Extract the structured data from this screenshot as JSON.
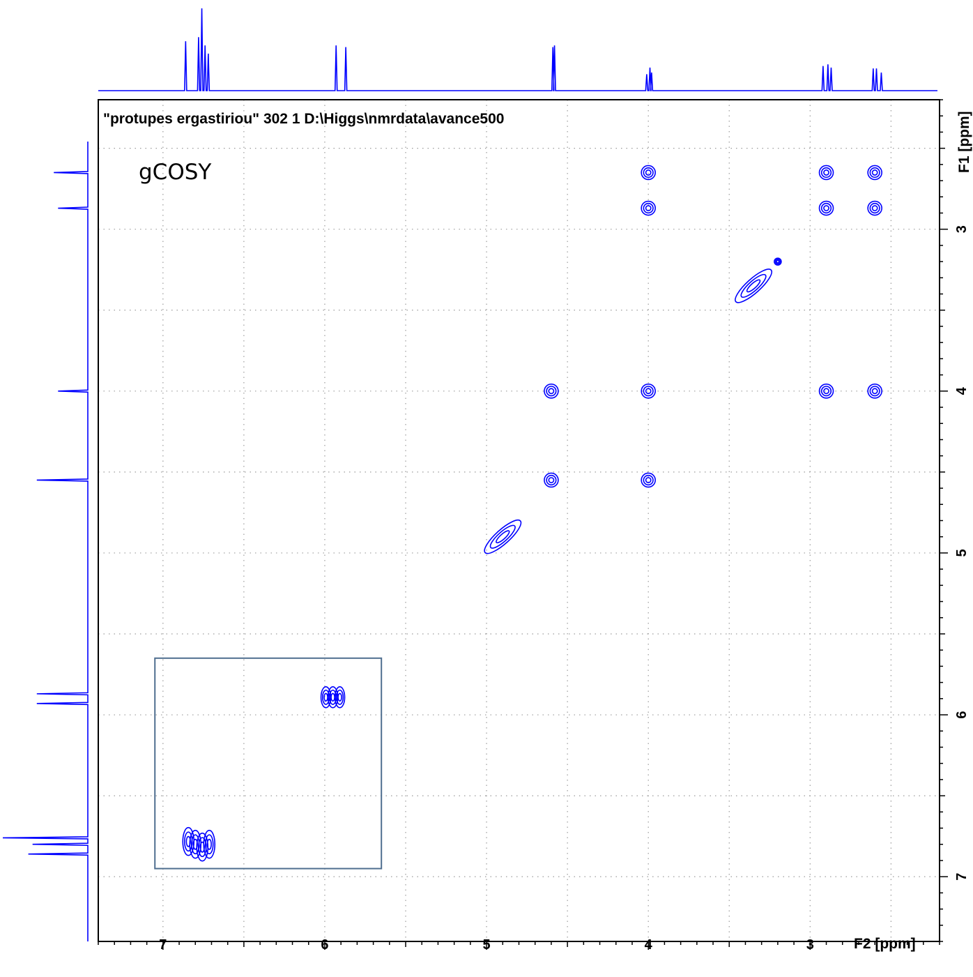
{
  "chart_data": {
    "type": "contour",
    "header": "\"protupes ergastiriou\"  302  1  D:\\Higgs\\nmrdata\\avance500",
    "experiment_label": "gCOSY",
    "xlabel": "F2 [ppm]",
    "ylabel": "F1 [ppm]",
    "xlim": [
      7.4,
      2.2
    ],
    "ylim": [
      2.2,
      7.4
    ],
    "x_ticks": [
      7,
      6,
      5,
      4,
      3
    ],
    "y_ticks": [
      3,
      4,
      5,
      6,
      7
    ],
    "grid": true,
    "x_minor_step": 0.1,
    "y_minor_step": 0.1,
    "grid_step": 0.5,
    "color": "#0000ff",
    "box_color": "#4f6e8f",
    "diagonal_peaks": [
      {
        "x": 6.8,
        "y": 6.8
      },
      {
        "x": 5.95,
        "y": 5.9
      },
      {
        "x": 4.9,
        "y": 4.9
      },
      {
        "x": 3.35,
        "y": 3.35
      }
    ],
    "cross_peaks": [
      {
        "x": 4.0,
        "y": 2.65
      },
      {
        "x": 2.9,
        "y": 2.65
      },
      {
        "x": 2.6,
        "y": 2.65
      },
      {
        "x": 4.0,
        "y": 2.87
      },
      {
        "x": 2.9,
        "y": 2.87
      },
      {
        "x": 2.6,
        "y": 2.87
      },
      {
        "x": 4.6,
        "y": 4.0
      },
      {
        "x": 4.0,
        "y": 4.0
      },
      {
        "x": 2.9,
        "y": 4.0
      },
      {
        "x": 2.6,
        "y": 4.0
      },
      {
        "x": 4.6,
        "y": 4.55
      },
      {
        "x": 4.0,
        "y": 4.55
      },
      {
        "x": 3.2,
        "y": 3.2
      }
    ],
    "box_region": {
      "x1": 7.05,
      "x2": 5.65,
      "y1": 5.65,
      "y2": 6.95
    },
    "projection_f2_peaks": [
      {
        "ppm": 6.86,
        "height": 0.6
      },
      {
        "ppm": 6.78,
        "height": 0.65
      },
      {
        "ppm": 6.76,
        "height": 1.0
      },
      {
        "ppm": 6.74,
        "height": 0.55
      },
      {
        "ppm": 6.72,
        "height": 0.45
      },
      {
        "ppm": 5.93,
        "height": 0.55
      },
      {
        "ppm": 5.87,
        "height": 0.53
      },
      {
        "ppm": 4.59,
        "height": 0.53
      },
      {
        "ppm": 4.58,
        "height": 0.55
      },
      {
        "ppm": 4.01,
        "height": 0.2
      },
      {
        "ppm": 3.99,
        "height": 0.28
      },
      {
        "ppm": 3.98,
        "height": 0.22
      },
      {
        "ppm": 2.92,
        "height": 0.3
      },
      {
        "ppm": 2.89,
        "height": 0.32
      },
      {
        "ppm": 2.87,
        "height": 0.28
      },
      {
        "ppm": 2.61,
        "height": 0.27
      },
      {
        "ppm": 2.59,
        "height": 0.27
      },
      {
        "ppm": 2.56,
        "height": 0.22
      }
    ],
    "projection_f1_peaks": [
      {
        "ppm": 2.65,
        "height": 0.4
      },
      {
        "ppm": 2.87,
        "height": 0.35
      },
      {
        "ppm": 4.0,
        "height": 0.35
      },
      {
        "ppm": 4.55,
        "height": 0.6
      },
      {
        "ppm": 5.87,
        "height": 0.6
      },
      {
        "ppm": 5.93,
        "height": 0.6
      },
      {
        "ppm": 6.76,
        "height": 1.0
      },
      {
        "ppm": 6.8,
        "height": 0.65
      },
      {
        "ppm": 6.86,
        "height": 0.7
      }
    ]
  }
}
